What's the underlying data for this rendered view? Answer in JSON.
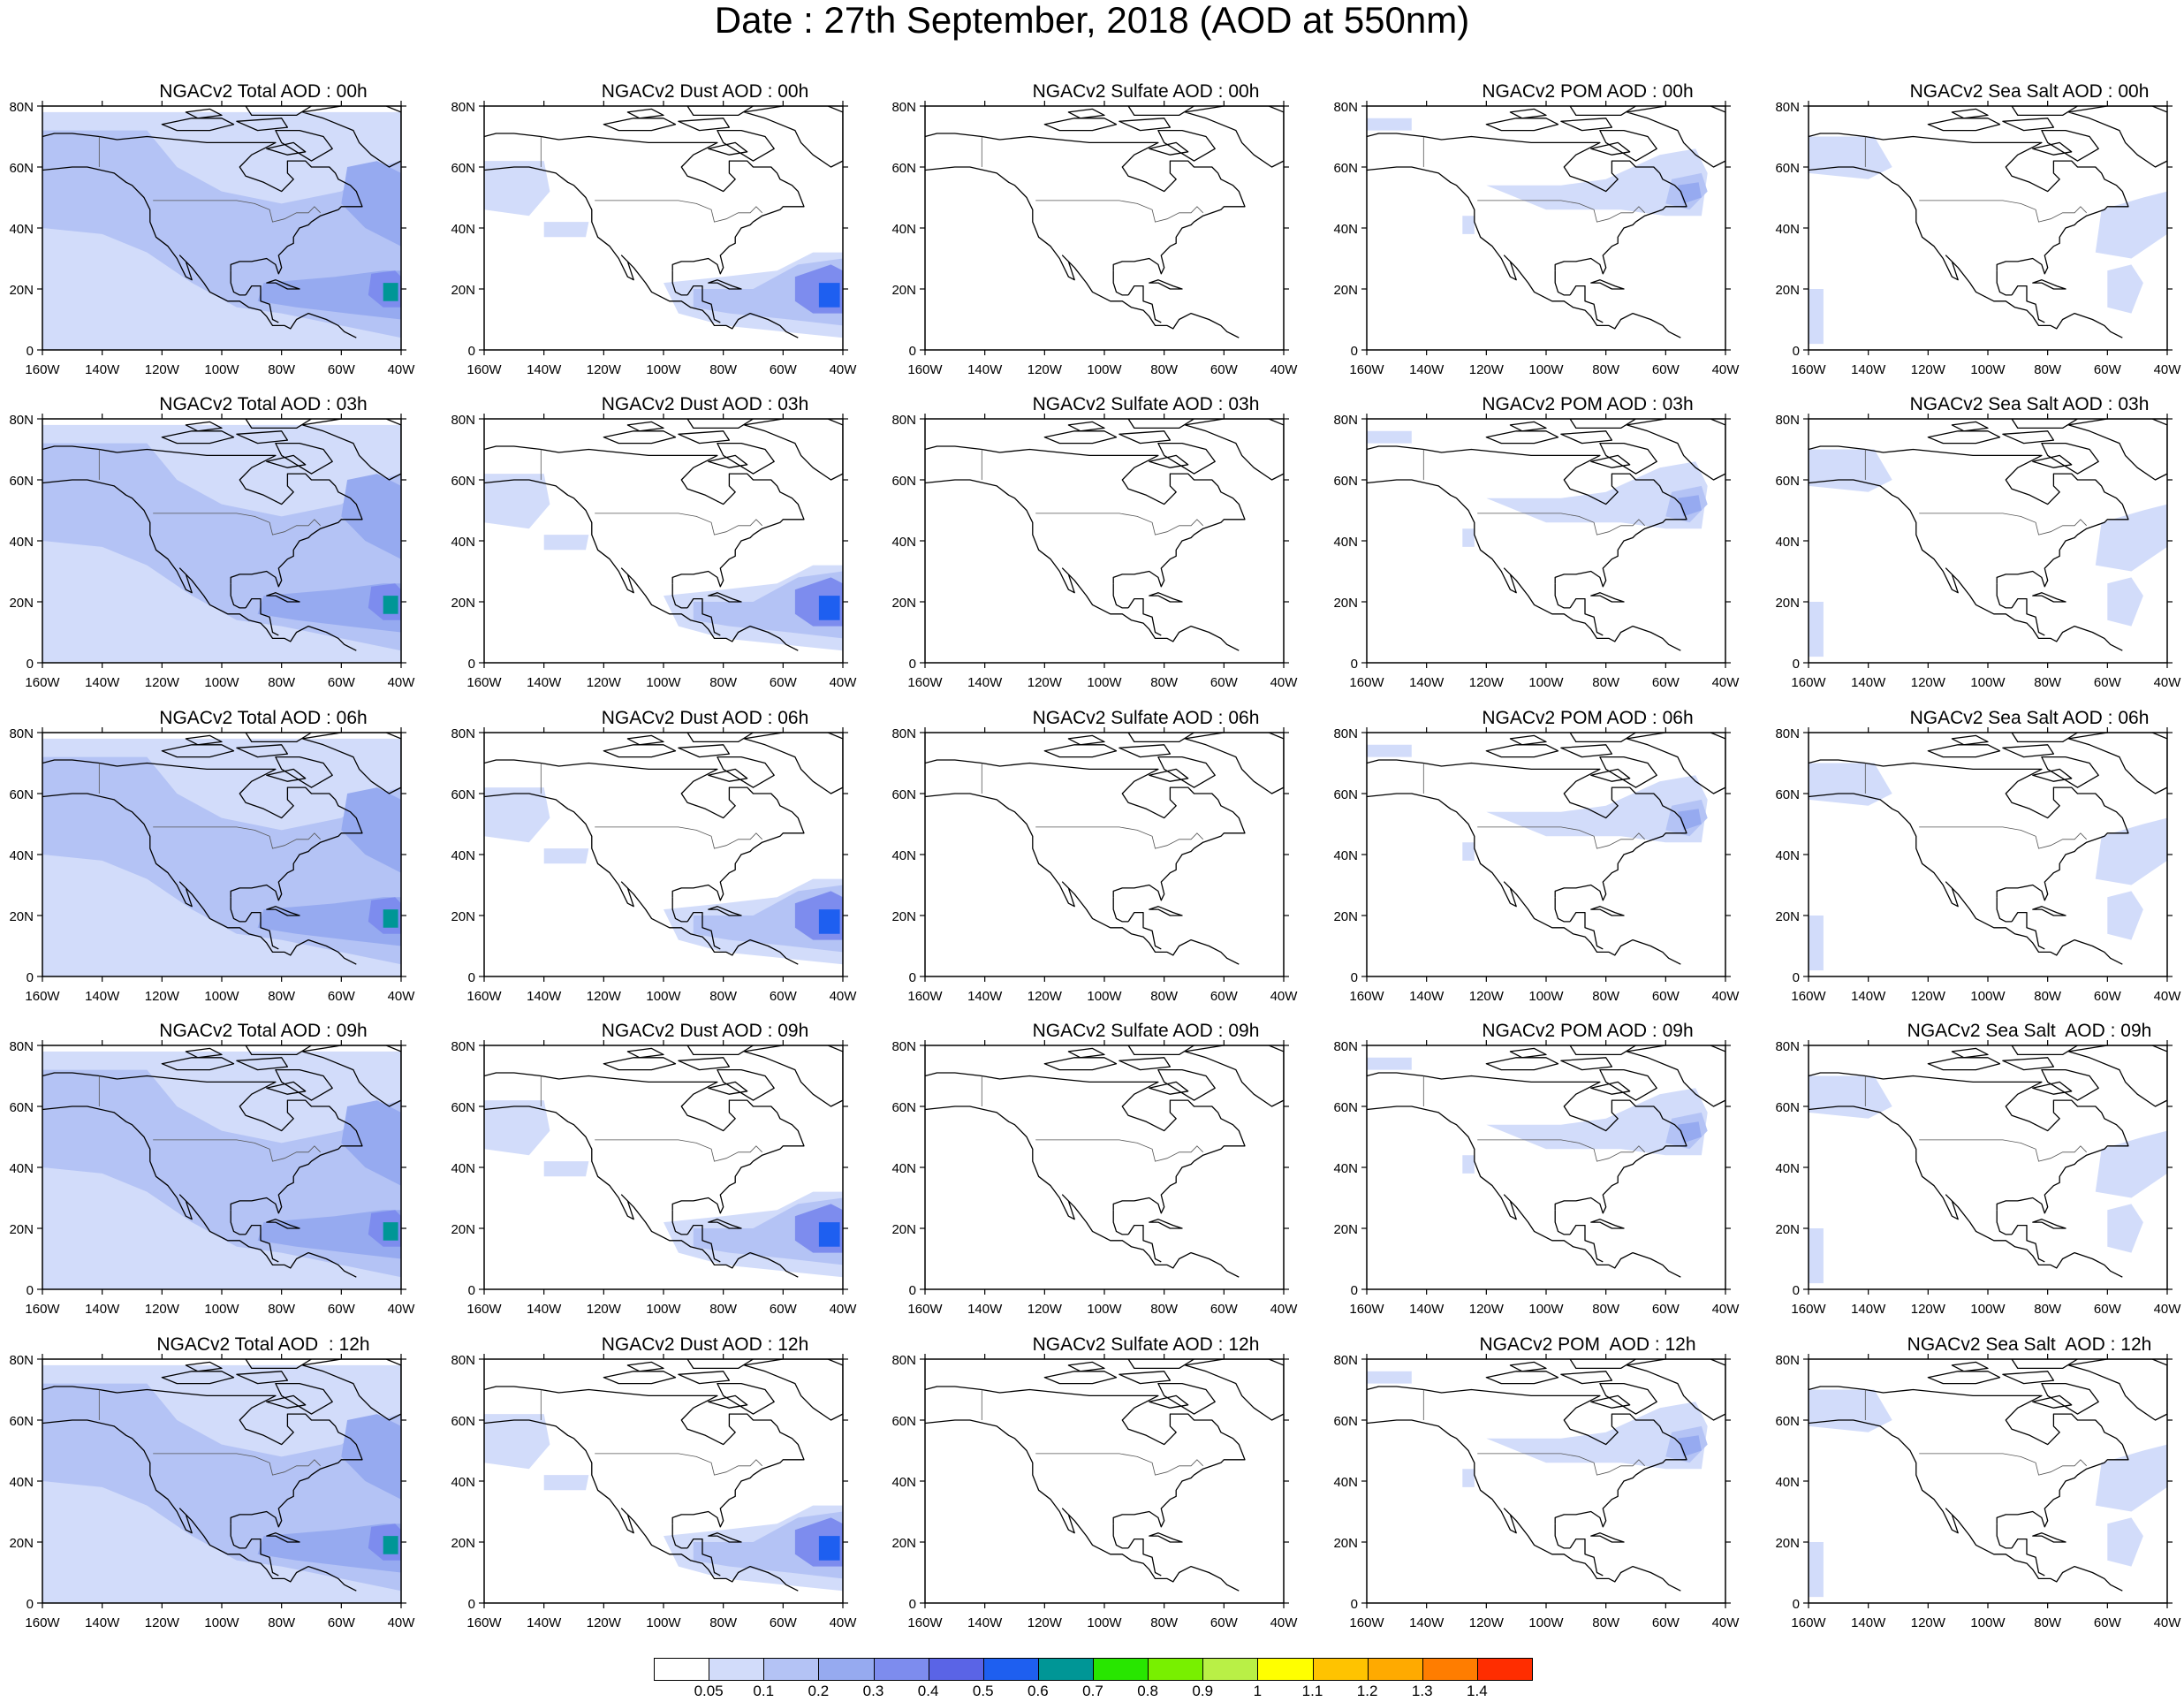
{
  "title": "Date : 27th September, 2018 (AOD at 550nm)",
  "lat_ticks": [
    "80N",
    "60N",
    "40N",
    "20N",
    "0"
  ],
  "lon_ticks": [
    "160W",
    "140W",
    "120W",
    "100W",
    "80W",
    "60W",
    "40W"
  ],
  "panels": [
    [
      {
        "title": "NGACv2 Total AOD : 00h",
        "species": "total"
      },
      {
        "title": "NGACv2 Dust AOD : 00h",
        "species": "dust"
      },
      {
        "title": "NGACv2 Sulfate AOD : 00h",
        "species": "sulfate"
      },
      {
        "title": "NGACv2 POM AOD : 00h",
        "species": "pom"
      },
      {
        "title": "NGACv2 Sea Salt AOD : 00h",
        "species": "seasalt"
      }
    ],
    [
      {
        "title": "NGACv2 Total AOD : 03h",
        "species": "total"
      },
      {
        "title": "NGACv2 Dust AOD : 03h",
        "species": "dust"
      },
      {
        "title": "NGACv2 Sulfate AOD : 03h",
        "species": "sulfate"
      },
      {
        "title": "NGACv2 POM AOD : 03h",
        "species": "pom"
      },
      {
        "title": "NGACv2 Sea Salt AOD : 03h",
        "species": "seasalt"
      }
    ],
    [
      {
        "title": "NGACv2 Total AOD : 06h",
        "species": "total"
      },
      {
        "title": "NGACv2 Dust AOD : 06h",
        "species": "dust"
      },
      {
        "title": "NGACv2 Sulfate AOD : 06h",
        "species": "sulfate"
      },
      {
        "title": "NGACv2 POM AOD : 06h",
        "species": "pom"
      },
      {
        "title": "NGACv2 Sea Salt AOD : 06h",
        "species": "seasalt"
      }
    ],
    [
      {
        "title": "NGACv2 Total AOD : 09h",
        "species": "total"
      },
      {
        "title": "NGACv2 Dust AOD : 09h",
        "species": "dust"
      },
      {
        "title": "NGACv2 Sulfate AOD : 09h",
        "species": "sulfate"
      },
      {
        "title": "NGACv2 POM AOD : 09h",
        "species": "pom"
      },
      {
        "title": "NGACv2 Sea Salt  AOD : 09h",
        "species": "seasalt"
      }
    ],
    [
      {
        "title": "NGACv2 Total AOD  : 12h",
        "species": "total"
      },
      {
        "title": "NGACv2 Dust AOD : 12h",
        "species": "dust"
      },
      {
        "title": "NGACv2 Sulfate AOD : 12h",
        "species": "sulfate"
      },
      {
        "title": "NGACv2 POM  AOD : 12h",
        "species": "pom"
      },
      {
        "title": "NGACv2 Sea Salt  AOD : 12h",
        "species": "seasalt"
      }
    ]
  ],
  "colorbar": {
    "labels": [
      "0.05",
      "0.1",
      "0.2",
      "0.3",
      "0.4",
      "0.5",
      "0.6",
      "0.7",
      "0.8",
      "0.9",
      "1",
      "1.1",
      "1.2",
      "1.3",
      "1.4"
    ],
    "colors": [
      "#ffffff",
      "#d2dcfa",
      "#b4c3f5",
      "#96aaf0",
      "#7d8cee",
      "#5a64e6",
      "#1e5ff0",
      "#009696",
      "#28e600",
      "#78f000",
      "#b9f046",
      "#ffff00",
      "#ffc300",
      "#ffaa00",
      "#ff7d00",
      "#ff2d00"
    ]
  },
  "colors": {
    "level_0.05_0.1": "#d2dcfa",
    "level_0.1_0.2": "#b4c3f5",
    "level_0.2_0.3": "#96aaf0",
    "level_0.3_0.4": "#7d8cee",
    "level_0.5_0.6": "#1e5ff0",
    "level_0.6_0.7": "#009696"
  }
}
